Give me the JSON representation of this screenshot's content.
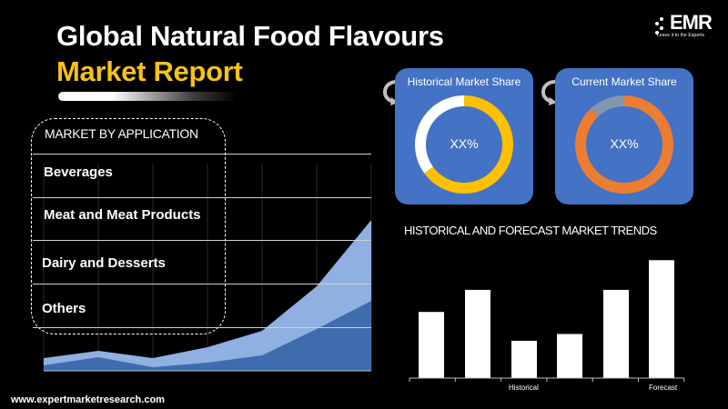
{
  "title": {
    "line1": "Global Natural Food Flavours",
    "line2": "Market Report"
  },
  "logo": {
    "text": "EMR",
    "tagline": "Leave it to the Experts"
  },
  "application": {
    "header": "MARKET  BY APPLICATION",
    "items": [
      "Beverages",
      "Meat and Meat Products",
      "Dairy and Desserts",
      "Others"
    ]
  },
  "historical_share": {
    "title": "Historical Market Share",
    "value_label": "XX%"
  },
  "current_share": {
    "title": "Current Market Share",
    "value_label": "XX%"
  },
  "trends": {
    "title": "HISTORICAL AND FORECAST MARKET TRENDS",
    "historical_label": "Historical",
    "forecast_label": "Forecast"
  },
  "url": "www.expertmarketresearch.com",
  "colors": {
    "accent_yellow": "#f5c21b",
    "card_blue": "#4472c4",
    "area_light": "#8fb0e0",
    "area_dark": "#3e6cae",
    "donut_yellow": "#ffc000",
    "donut_orange": "#ed7d31",
    "donut_gray": "#8496b0"
  },
  "chart_data": [
    {
      "type": "area",
      "title": "",
      "x": [
        1,
        2,
        3,
        4,
        5,
        6,
        7
      ],
      "series": [
        {
          "values": [
            14,
            22,
            14,
            26,
            44,
            93,
            166
          ]
        },
        {
          "values": [
            6,
            15,
            4,
            9,
            17,
            46,
            77
          ]
        }
      ],
      "ylim": [
        0,
        170
      ],
      "grid": true
    },
    {
      "type": "pie",
      "title": "Historical Market Share",
      "values": [
        65,
        35
      ],
      "colors": [
        "#ffc000",
        "#ffffff"
      ]
    },
    {
      "type": "pie",
      "title": "Current Market Share",
      "values": [
        88,
        12
      ],
      "colors": [
        "#ed7d31",
        "#8496b0"
      ]
    },
    {
      "type": "bar",
      "title": "HISTORICAL AND FORECAST MARKET TRENDS",
      "categories": [
        "",
        "",
        "Historical",
        "",
        "",
        "Forecast"
      ],
      "values": [
        78,
        104,
        44,
        52,
        104,
        139
      ],
      "ylim": [
        0,
        150
      ]
    }
  ]
}
